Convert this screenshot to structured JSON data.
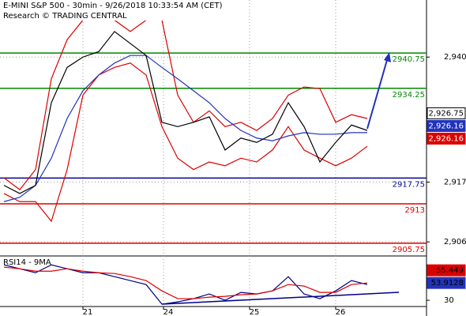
{
  "chart_data": [
    {
      "type": "line",
      "title": "E-MINI S&P 500 - 30min - 9/26/2018 10:33:54 AM (CET)",
      "subtitle": "Research © TRADING CENTRAL",
      "x": [
        0,
        1,
        2,
        3,
        4,
        5,
        6,
        7,
        8,
        9,
        10,
        11,
        12,
        13,
        14,
        15,
        16,
        17,
        18,
        19,
        20,
        21,
        22,
        23
      ],
      "xlim": [
        -0.25,
        26.75
      ],
      "xticks": [
        {
          "value": 5,
          "label": "21"
        },
        {
          "value": 10.1,
          "label": "24"
        },
        {
          "value": 15.55,
          "label": "25"
        },
        {
          "value": 21,
          "label": "26"
        }
      ],
      "ylim": [
        2903.7,
        2950.5
      ],
      "yticks": [
        {
          "value": 2940,
          "label": "2,940"
        },
        {
          "value": 2917,
          "label": "2,917"
        },
        {
          "value": 2906,
          "label": "2,906"
        }
      ],
      "grid": true,
      "series": [
        {
          "color": "#dd0000",
          "values": [
            2917.8,
            2915.6,
            2919.3,
            2936,
            2943.2,
            2946.8,
            2947.6,
            2946.8,
            2944.7,
            2946.8,
            2946.8,
            2933,
            2928,
            2930.1,
            2927.2,
            2928,
            2926.5,
            2928.7,
            2933,
            2934.5,
            2934.2,
            2928,
            2929.4,
            2928.7
          ]
        },
        {
          "color": "#dd0000",
          "values": [
            2914.9,
            2913.4,
            2913.4,
            2909.8,
            2919.3,
            2933,
            2936.7,
            2938.1,
            2938.9,
            2936.7,
            2927.2,
            2921.4,
            2919.3,
            2920.7,
            2920,
            2921.4,
            2920.7,
            2922.9,
            2927.2,
            2922.9,
            2921.4,
            2920,
            2921.4,
            2923.6
          ]
        },
        {
          "color": "#2233bb",
          "values": [
            2913.4,
            2914.2,
            2916.4,
            2921.4,
            2928.7,
            2933.8,
            2936.7,
            2938.9,
            2940.3,
            2940.3,
            2938.1,
            2936,
            2933.8,
            2931.6,
            2928.7,
            2926.5,
            2925.1,
            2924.6,
            2925.5,
            2926.1,
            2925.8,
            2925.8,
            2926.1,
            2926.1
          ]
        },
        {
          "color": "#000000",
          "values": [
            2916.4,
            2914.9,
            2916.4,
            2931.6,
            2938.1,
            2940,
            2941,
            2944.7,
            2942.5,
            2940.3,
            2928,
            2927.2,
            2928,
            2929,
            2922.9,
            2925.1,
            2924.3,
            2925.8,
            2931.6,
            2927.2,
            2920.7,
            2924.3,
            2927.5,
            2926.5
          ]
        }
      ],
      "levels": [
        {
          "value": 2940.75,
          "color": "#008800"
        },
        {
          "value": 2934.25,
          "color": "#008800"
        },
        {
          "value": 2917.75,
          "color": "#000099"
        },
        {
          "value": 2913,
          "color": "#dd0000"
        },
        {
          "value": 2905.75,
          "color": "#dd0000"
        }
      ],
      "price_labels": [
        {
          "value": 2926.75,
          "label": "2,926.75",
          "color": "#ffffff"
        },
        {
          "value": 2926.16,
          "label": "2,926.16",
          "color": "#2233bb"
        },
        {
          "value": 2926.16,
          "label": "2,926.16",
          "color": "#dd0000"
        }
      ]
    },
    {
      "type": "line",
      "title": "RSI14 - 9MA",
      "x": [
        0,
        1,
        2,
        3,
        4,
        5,
        6,
        7,
        8,
        9,
        10,
        11,
        12,
        13,
        14,
        15,
        16,
        17,
        18,
        19,
        20,
        21,
        22,
        23
      ],
      "xlim": [
        -0.25,
        26.75
      ],
      "ylim": [
        17,
        89
      ],
      "yticks": [
        30
      ],
      "series": [
        {
          "color": "#000088",
          "values": [
            78.9,
            73.5,
            68,
            78.9,
            73.5,
            68,
            68,
            62.6,
            57.2,
            51.7,
            24.6,
            27.8,
            32.2,
            38.7,
            30,
            40.9,
            38.7,
            43,
            62.6,
            38.7,
            32.2,
            43,
            57.2,
            51.7
          ]
        },
        {
          "color": "#dd0000",
          "values": [
            75.7,
            73.5,
            70.2,
            70.2,
            73.5,
            70.2,
            68,
            67,
            62.6,
            57.2,
            43,
            32.2,
            32.2,
            34.3,
            35.4,
            37.6,
            38.7,
            43,
            51.7,
            49.6,
            40.9,
            40.9,
            51.7,
            53.9
          ]
        }
      ],
      "value_labels": [
        {
          "value": 55.449,
          "label": "55.449",
          "color": "#dd0000"
        },
        {
          "value": 53.9128,
          "label": "53.9128",
          "color": "#2233bb"
        }
      ]
    }
  ]
}
